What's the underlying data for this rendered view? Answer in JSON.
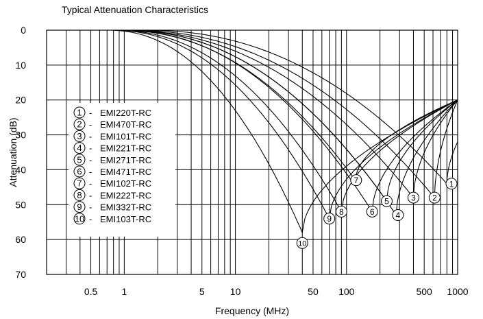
{
  "chart_data": {
    "type": "line",
    "title": "Typical Attenuation Characteristics",
    "xlabel": "Frequency (MHz)",
    "ylabel": "Attenuation (dB)",
    "x_scale": "log",
    "xlim": [
      0.2,
      1000
    ],
    "ylim": [
      0,
      70
    ],
    "y_inverted": true,
    "x_ticks": [
      {
        "value": 0.5,
        "label": "0.5"
      },
      {
        "value": 1,
        "label": "1"
      },
      {
        "value": 5,
        "label": "5"
      },
      {
        "value": 10,
        "label": "10"
      },
      {
        "value": 50,
        "label": "50"
      },
      {
        "value": 100,
        "label": "100"
      },
      {
        "value": 500,
        "label": "500"
      },
      {
        "value": 1000,
        "label": "1000"
      }
    ],
    "y_ticks": [
      0,
      10,
      20,
      30,
      40,
      50,
      60,
      70
    ],
    "grid": true,
    "legend_position": "left",
    "series": [
      {
        "name": "EMI220T-RC",
        "marker": "1",
        "start": 1.5,
        "resonance": 800,
        "peak_db": 44,
        "end_db": 32
      },
      {
        "name": "EMI470T-RC",
        "marker": "2",
        "start": 1.1,
        "resonance": 620,
        "peak_db": 48,
        "end_db": 20
      },
      {
        "name": "EMI101T-RC",
        "marker": "3",
        "start": 0.95,
        "resonance": 400,
        "peak_db": 48,
        "end_db": 20
      },
      {
        "name": "EMI221T-RC",
        "marker": "4",
        "start": 0.95,
        "resonance": 280,
        "peak_db": 53,
        "end_db": 20
      },
      {
        "name": "EMI271T-RC",
        "marker": "5",
        "start": 0.95,
        "resonance": 230,
        "peak_db": 49,
        "end_db": 20
      },
      {
        "name": "EMI471T-RC",
        "marker": "6",
        "start": 0.9,
        "resonance": 170,
        "peak_db": 52,
        "end_db": 20
      },
      {
        "name": "EMI102T-RC",
        "marker": "7",
        "start": 0.85,
        "resonance": 120,
        "peak_db": 43,
        "end_db": 20
      },
      {
        "name": "EMI222T-RC",
        "marker": "8",
        "start": 0.8,
        "resonance": 90,
        "peak_db": 52,
        "end_db": 20
      },
      {
        "name": "EMI332T-RC",
        "marker": "9",
        "start": 0.75,
        "resonance": 70,
        "peak_db": 54,
        "end_db": 20
      },
      {
        "name": "EMI103T-RC",
        "marker": "10",
        "start": 0.7,
        "resonance": 40,
        "peak_db": 58,
        "end_db": 20
      }
    ],
    "labels": [
      {
        "marker": "1",
        "x": 880,
        "y": 44
      },
      {
        "marker": "2",
        "x": 620,
        "y": 48
      },
      {
        "marker": "3",
        "x": 400,
        "y": 48
      },
      {
        "marker": "4",
        "x": 290,
        "y": 53
      },
      {
        "marker": "5",
        "x": 230,
        "y": 49
      },
      {
        "marker": "6",
        "x": 170,
        "y": 52
      },
      {
        "marker": "7",
        "x": 122,
        "y": 43
      },
      {
        "marker": "8",
        "x": 90,
        "y": 52
      },
      {
        "marker": "9",
        "x": 70,
        "y": 54
      },
      {
        "marker": "10",
        "x": 40,
        "y": 61
      }
    ],
    "legend_separator": "-"
  }
}
